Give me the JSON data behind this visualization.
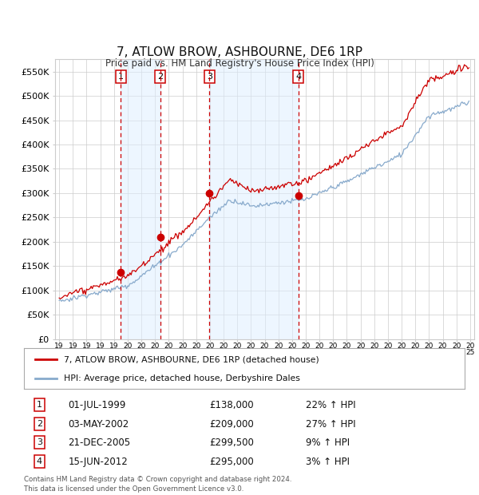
{
  "title": "7, ATLOW BROW, ASHBOURNE, DE6 1RP",
  "subtitle": "Price paid vs. HM Land Registry's House Price Index (HPI)",
  "footer1": "Contains HM Land Registry data © Crown copyright and database right 2024.",
  "footer2": "This data is licensed under the Open Government Licence v3.0.",
  "legend1": "7, ATLOW BROW, ASHBOURNE, DE6 1RP (detached house)",
  "legend2": "HPI: Average price, detached house, Derbyshire Dales",
  "sales": [
    {
      "num": 1,
      "date": "01-JUL-1999",
      "price": 138000,
      "year": 1999.5,
      "pct": "22%",
      "dir": "↑"
    },
    {
      "num": 2,
      "date": "03-MAY-2002",
      "price": 209000,
      "year": 2002.37,
      "pct": "27%",
      "dir": "↑"
    },
    {
      "num": 3,
      "date": "21-DEC-2005",
      "price": 299500,
      "year": 2005.97,
      "pct": "9%",
      "dir": "↑"
    },
    {
      "num": 4,
      "date": "15-JUN-2012",
      "price": 295000,
      "year": 2012.46,
      "pct": "3%",
      "dir": "↑"
    }
  ],
  "ylim": [
    0,
    575000
  ],
  "yticks": [
    0,
    50000,
    100000,
    150000,
    200000,
    250000,
    300000,
    350000,
    400000,
    450000,
    500000,
    550000
  ],
  "ytick_labels": [
    "£0",
    "£50K",
    "£100K",
    "£150K",
    "£200K",
    "£250K",
    "£300K",
    "£350K",
    "£400K",
    "£450K",
    "£500K",
    "£550K"
  ],
  "xlim_start": 1994.7,
  "xlim_end": 2025.3,
  "red_line_color": "#cc0000",
  "blue_line_color": "#88aacc",
  "shade_color": "#ddeeff",
  "grid_color": "#cccccc",
  "background_color": "#ffffff",
  "dot_color": "#cc0000"
}
